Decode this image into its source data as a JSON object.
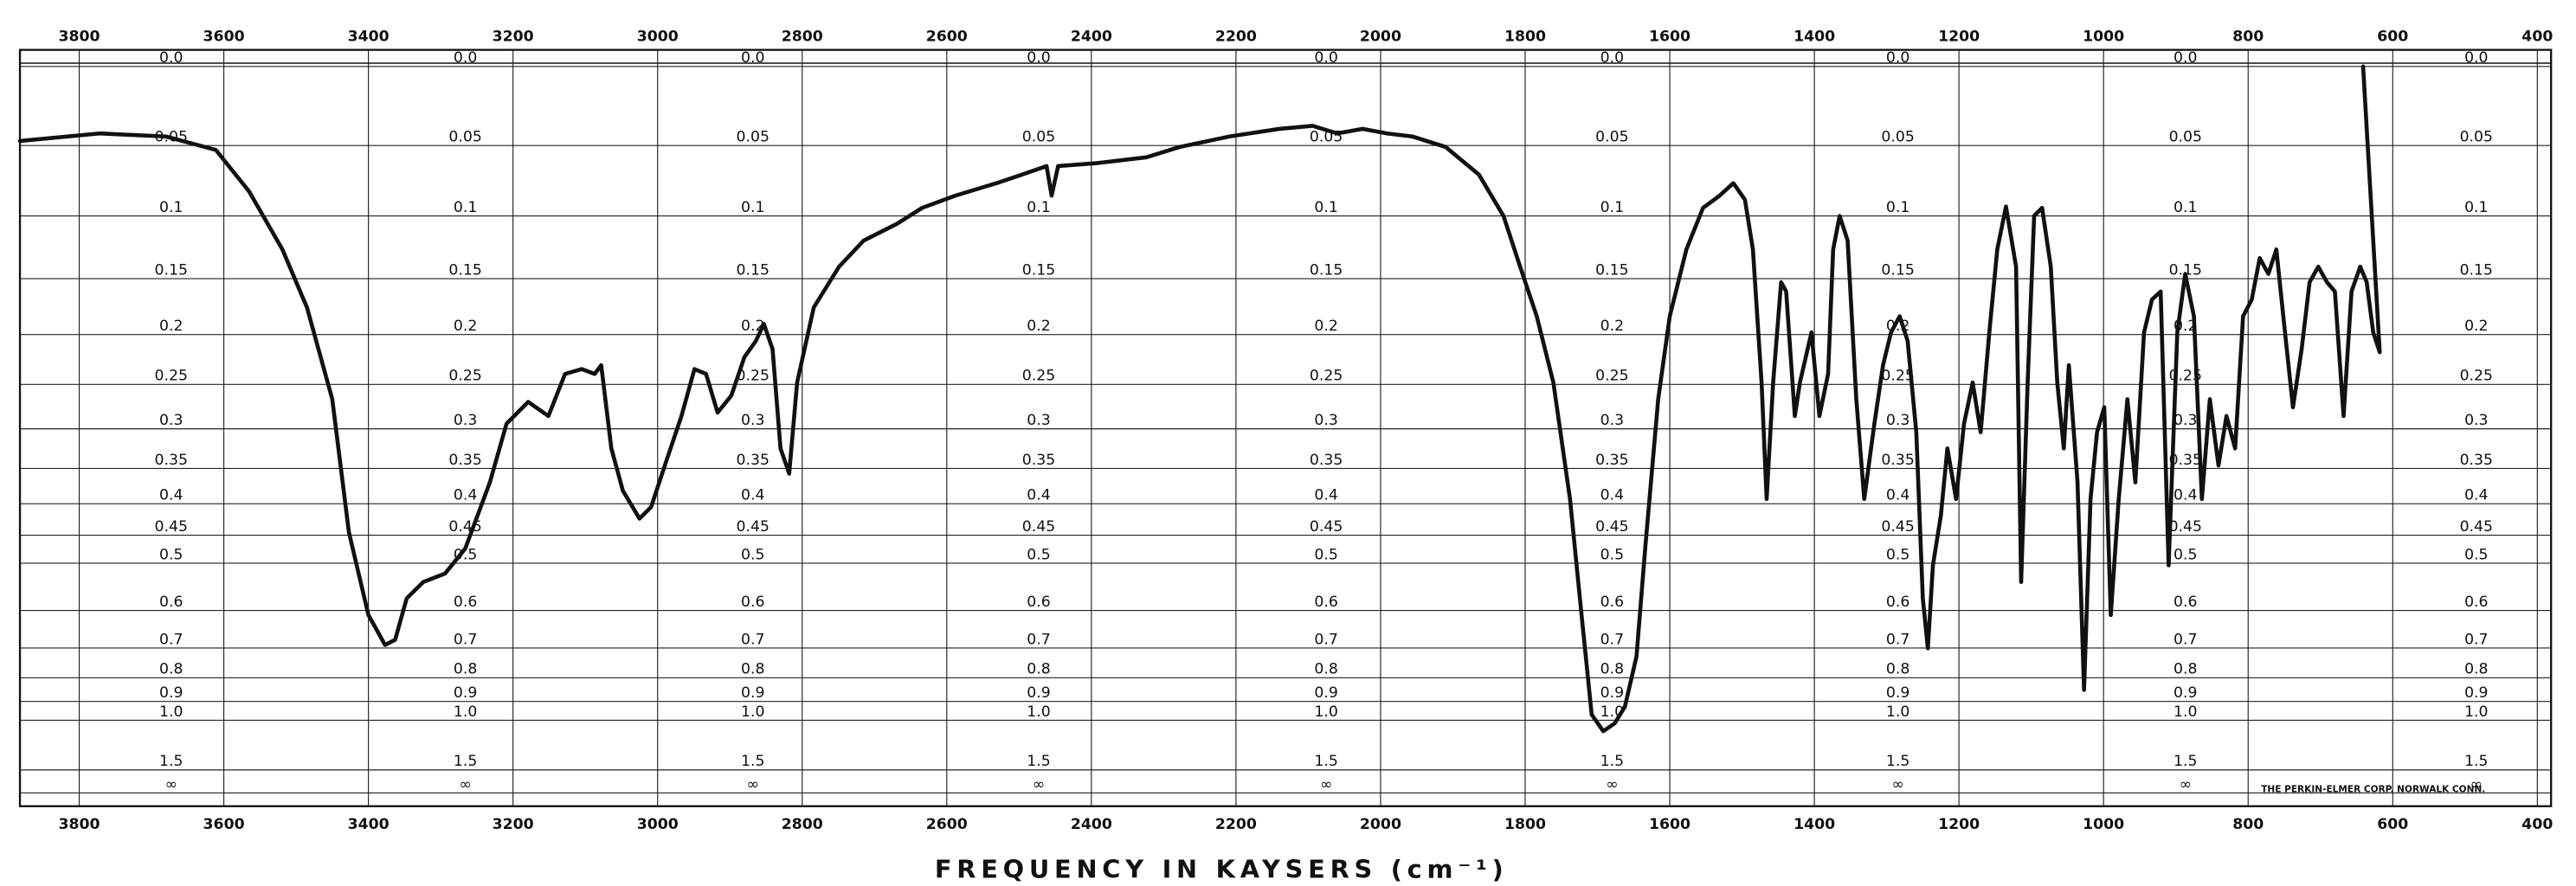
{
  "chart_data": {
    "type": "line",
    "x_label": "FREQUENCY IN KAYSERS (cm⁻¹)",
    "note": "THE PERKIN-ELMER CORP. NORWALK CONN.",
    "color": "#111111",
    "grid": true,
    "y_scale": "transmittance",
    "xlim": [
      3882,
      381
    ],
    "xticks": [
      3800,
      3600,
      3400,
      3200,
      3000,
      2800,
      2600,
      2400,
      2200,
      2000,
      1800,
      1600,
      1400,
      1200,
      1000,
      800,
      600,
      400
    ],
    "ylim": [
      0,
      null
    ],
    "yticks": [
      {
        "value": 0,
        "label": "0.0"
      },
      0.05,
      0.1,
      0.15,
      0.2,
      0.25,
      0.3,
      0.35,
      0.4,
      0.45,
      0.5,
      0.6,
      0.7,
      0.8,
      0.9,
      {
        "value": 1,
        "label": "1.0"
      },
      1.5,
      {
        "value": null,
        "label": "∞"
      }
    ],
    "x": [
      3882,
      3772,
      3680,
      3611,
      3565,
      3519,
      3485,
      3450,
      3427,
      3400,
      3377,
      3363,
      3347,
      3324,
      3294,
      3266,
      3232,
      3209,
      3179,
      3151,
      3128,
      3105,
      3087,
      3078,
      3064,
      3048,
      3025,
      3009,
      2990,
      2967,
      2949,
      2933,
      2917,
      2898,
      2880,
      2864,
      2853,
      2841,
      2830,
      2818,
      2807,
      2784,
      2749,
      2715,
      2669,
      2634,
      2588,
      2531,
      2496,
      2462,
      2455,
      2446,
      2393,
      2324,
      2278,
      2209,
      2140,
      2094,
      2060,
      2025,
      1991,
      1956,
      1910,
      1864,
      1830,
      1807,
      1784,
      1761,
      1738,
      1722,
      1708,
      1692,
      1676,
      1662,
      1646,
      1634,
      1616,
      1600,
      1577,
      1554,
      1531,
      1512,
      1496,
      1485,
      1473,
      1466,
      1457,
      1446,
      1439,
      1427,
      1420,
      1404,
      1393,
      1381,
      1374,
      1365,
      1354,
      1342,
      1331,
      1317,
      1305,
      1294,
      1282,
      1271,
      1259,
      1250,
      1243,
      1236,
      1225,
      1216,
      1204,
      1193,
      1181,
      1170,
      1158,
      1147,
      1135,
      1121,
      1114,
      1105,
      1096,
      1085,
      1073,
      1064,
      1055,
      1048,
      1036,
      1027,
      1018,
      1009,
      999,
      990,
      979,
      967,
      956,
      944,
      933,
      921,
      910,
      898,
      887,
      875,
      864,
      853,
      841,
      830,
      818,
      807,
      795,
      784,
      772,
      761,
      749,
      738,
      726,
      715,
      703,
      691,
      680,
      668,
      657,
      645,
      636,
      627,
      618,
      641
    ],
    "values": [
      0.047,
      0.042,
      0.044,
      0.053,
      0.082,
      0.126,
      0.175,
      0.266,
      0.445,
      0.611,
      0.691,
      0.676,
      0.572,
      0.537,
      0.52,
      0.473,
      0.369,
      0.294,
      0.269,
      0.285,
      0.239,
      0.234,
      0.239,
      0.23,
      0.324,
      0.381,
      0.423,
      0.405,
      0.346,
      0.285,
      0.234,
      0.239,
      0.281,
      0.262,
      0.222,
      0.206,
      0.19,
      0.214,
      0.324,
      0.357,
      0.248,
      0.175,
      0.14,
      0.119,
      0.106,
      0.094,
      0.085,
      0.076,
      0.07,
      0.064,
      0.085,
      0.064,
      0.062,
      0.058,
      0.051,
      0.044,
      0.039,
      0.037,
      0.042,
      0.039,
      0.042,
      0.044,
      0.051,
      0.07,
      0.1,
      0.14,
      0.183,
      0.248,
      0.393,
      0.611,
      0.967,
      1.071,
      1.018,
      0.925,
      0.726,
      0.473,
      0.266,
      0.183,
      0.126,
      0.094,
      0.085,
      0.076,
      0.088,
      0.126,
      0.248,
      0.393,
      0.248,
      0.153,
      0.161,
      0.285,
      0.248,
      0.198,
      0.285,
      0.239,
      0.126,
      0.1,
      0.119,
      0.266,
      0.393,
      0.294,
      0.23,
      0.198,
      0.183,
      0.206,
      0.304,
      0.572,
      0.701,
      0.504,
      0.418,
      0.324,
      0.393,
      0.294,
      0.248,
      0.304,
      0.198,
      0.126,
      0.093,
      0.14,
      0.537,
      0.248,
      0.1,
      0.094,
      0.14,
      0.248,
      0.324,
      0.23,
      0.369,
      0.848,
      0.393,
      0.304,
      0.275,
      0.611,
      0.393,
      0.266,
      0.369,
      0.198,
      0.168,
      0.161,
      0.504,
      0.198,
      0.146,
      0.183,
      0.393,
      0.266,
      0.346,
      0.285,
      0.324,
      0.183,
      0.168,
      0.133,
      0.146,
      0.126,
      0.198,
      0.275,
      0.214,
      0.153,
      0.14,
      0.153,
      0.161,
      0.285,
      0.161,
      0.14,
      0.153,
      0.198,
      0.217,
      0
    ]
  }
}
